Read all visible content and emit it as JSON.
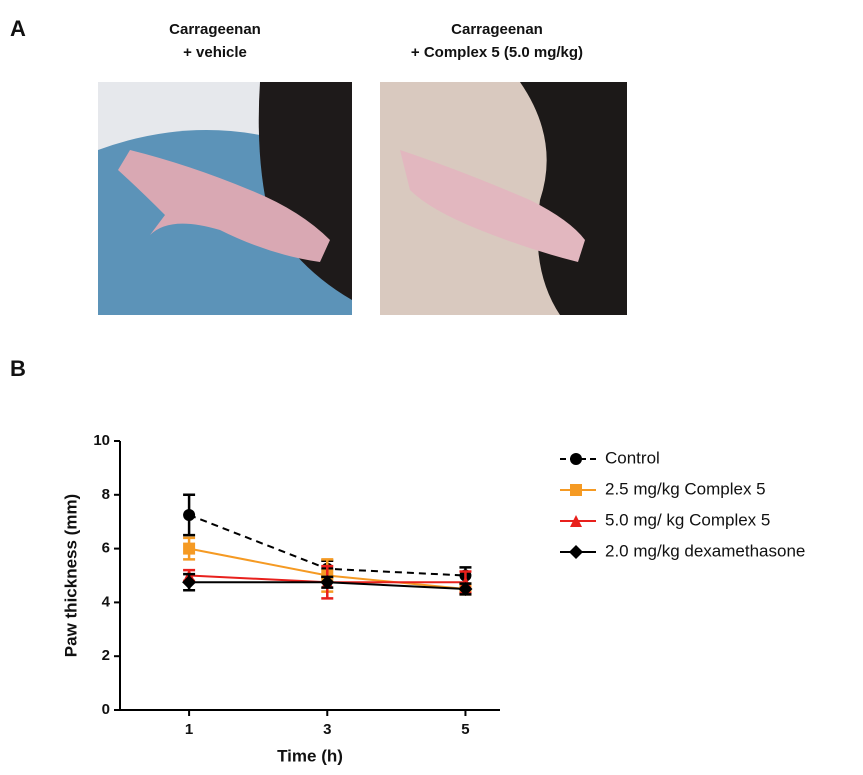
{
  "panels": {
    "a": {
      "label": "A",
      "captions": [
        [
          "Carrageenan",
          "+ vehicle"
        ],
        [
          "Carrageenan",
          "+ Complex 5 (5.0 mg/kg)"
        ]
      ]
    },
    "b": {
      "label": "B"
    }
  },
  "chart_data": {
    "type": "line",
    "x_label": "Time (h)",
    "y_label": "Paw thickness (mm)",
    "x": [
      1,
      3,
      5
    ],
    "xlim": [
      0,
      5.5
    ],
    "xticks": [
      1,
      3,
      5
    ],
    "ylim": [
      0,
      10
    ],
    "yticks": [
      0,
      2,
      4,
      6,
      8,
      10
    ],
    "series": [
      {
        "name": "Control",
        "color": "#000000",
        "marker": "circle",
        "linestyle": "dashed",
        "values": [
          7.25,
          5.25,
          5.0
        ],
        "errors": [
          0.75,
          0.3,
          0.3
        ]
      },
      {
        "name": "2.5 mg/kg Complex 5",
        "color": "#f59a23",
        "marker": "square",
        "linestyle": "solid",
        "values": [
          6.0,
          5.0,
          4.5
        ],
        "errors": [
          0.4,
          0.6,
          0.2
        ]
      },
      {
        "name": "5.0 mg/ kg Complex 5",
        "color": "#e8201c",
        "marker": "triangle",
        "linestyle": "solid",
        "values": [
          5.0,
          4.75,
          4.75
        ],
        "errors": [
          0.2,
          0.6,
          0.4
        ]
      },
      {
        "name": "2.0 mg/kg dexamethasone",
        "color": "#000000",
        "marker": "diamond",
        "linestyle": "solid",
        "values": [
          4.75,
          4.75,
          4.5
        ],
        "errors": [
          0.3,
          0.2,
          0.2
        ]
      }
    ]
  }
}
